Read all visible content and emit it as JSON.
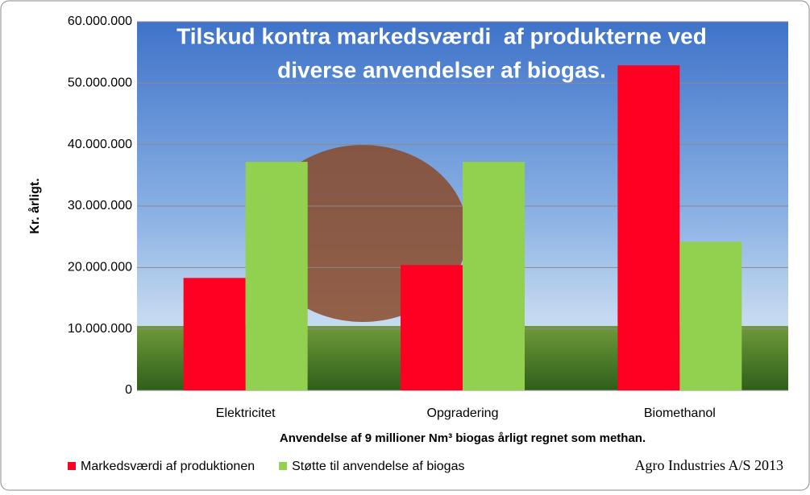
{
  "chart_data": {
    "type": "bar",
    "title": [
      "Tilskud kontra markedsværdi  af produkterne ved",
      "diverse anvendelser af biogas."
    ],
    "x_label": "Anvendelse af 9 millioner Nm³ biogas årligt regnet som methan.",
    "y_label": "Kr. årligt.",
    "annotation": "Agro Industries A/S 2013",
    "categories": [
      "Elektricitet",
      "Opgradering",
      "Biomethanol"
    ],
    "series": [
      {
        "name": "Markedsværdi af produktionen",
        "color": "#ff0022",
        "values": [
          18300000,
          20400000,
          52900000
        ]
      },
      {
        "name": "Støtte til anvendelse af biogas",
        "color": "#92d050",
        "values": [
          37200000,
          37200000,
          24200000
        ]
      }
    ],
    "ylim": [
      0,
      60000000
    ],
    "yticks": [
      0,
      {
        "value": 10000000,
        "label": "10.000.000"
      },
      {
        "value": 20000000,
        "label": "20.000.000"
      },
      {
        "value": 30000000,
        "label": "30.000.000"
      },
      {
        "value": 40000000,
        "label": "40.000.000"
      },
      {
        "value": 50000000,
        "label": "50.000.000"
      },
      {
        "value": 60000000,
        "label": "60.000.000"
      }
    ],
    "grid": true,
    "legend": "bottom"
  }
}
